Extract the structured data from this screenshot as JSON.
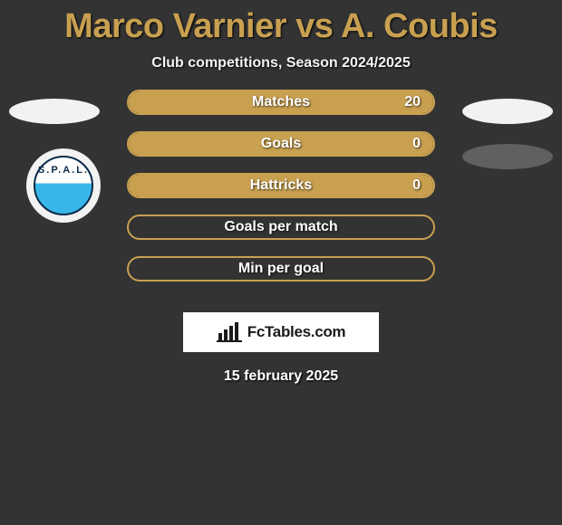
{
  "title": "Marco Varnier vs A. Coubis",
  "title_color": "#c8a050",
  "subtitle": "Club competitions, Season 2024/2025",
  "background_color": "#333333",
  "crest": {
    "text": "S.P.A.L.",
    "top_color": "#ffffff",
    "bottom_color": "#38b6e8",
    "border_color": "#0a2a4a"
  },
  "bars": [
    {
      "label": "Matches",
      "value": "20",
      "fill_pct": 100,
      "fill_color": "#c8a050",
      "border_color": "#c8a050"
    },
    {
      "label": "Goals",
      "value": "0",
      "fill_pct": 100,
      "fill_color": "#c8a050",
      "border_color": "#c8a050"
    },
    {
      "label": "Hattricks",
      "value": "0",
      "fill_pct": 100,
      "fill_color": "#c8a050",
      "border_color": "#c8a050"
    },
    {
      "label": "Goals per match",
      "value": "",
      "fill_pct": 0,
      "fill_color": "#c8a050",
      "border_color": "#c8a050"
    },
    {
      "label": "Min per goal",
      "value": "",
      "fill_pct": 0,
      "fill_color": "#c8a050",
      "border_color": "#c8a050"
    }
  ],
  "brand": {
    "text": "FcTables.com"
  },
  "date": "15 february 2025"
}
